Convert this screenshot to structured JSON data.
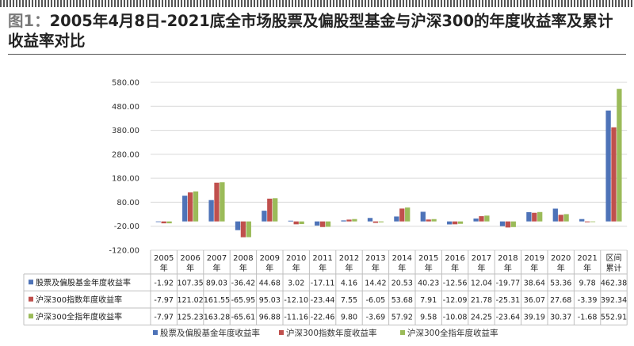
{
  "title": {
    "prefix": "图1：",
    "text": "2005年4月8日-2021底全市场股票及偏股型基金与沪深300的年度收益率及累计收益率对比"
  },
  "colors": {
    "series": [
      "#4e73b8",
      "#c0504d",
      "#9bbb59"
    ],
    "grid": "#d9d9d9",
    "axis": "#bfbfbf"
  },
  "chart_data": {
    "type": "bar",
    "title": "2005年4月8日-2021底全市场股票及偏股型基金与沪深300的年度收益率及累计收益率对比",
    "categories": [
      [
        "2005",
        "年"
      ],
      [
        "2006",
        "年"
      ],
      [
        "2007",
        "年"
      ],
      [
        "2008",
        "年"
      ],
      [
        "2009",
        "年"
      ],
      [
        "2010",
        "年"
      ],
      [
        "2011",
        "年"
      ],
      [
        "2012",
        "年"
      ],
      [
        "2013",
        "年"
      ],
      [
        "2014",
        "年"
      ],
      [
        "2015",
        "年"
      ],
      [
        "2016",
        "年"
      ],
      [
        "2017",
        "年"
      ],
      [
        "2018",
        "年"
      ],
      [
        "2019",
        "年"
      ],
      [
        "2020",
        "年"
      ],
      [
        "2021",
        "年"
      ],
      [
        "区间",
        "累计"
      ]
    ],
    "series": [
      {
        "name": "股票及偏股基金年度收益率",
        "values": [
          -1.92,
          107.35,
          89.03,
          -36.42,
          44.68,
          3.02,
          -17.11,
          4.16,
          14.42,
          20.53,
          40.23,
          -12.56,
          12.04,
          -19.77,
          38.64,
          53.36,
          9.78,
          462.38
        ],
        "labels": [
          "-1.92",
          "107.35",
          "89.03",
          "-36.42",
          "44.68",
          "3.02",
          "-17.11",
          "4.16",
          "14.42",
          "20.53",
          "40.23",
          "-12.56",
          "12.04",
          "-19.77",
          "38.64",
          "53.36",
          "9.78",
          "462.38"
        ]
      },
      {
        "name": "沪深300指数年度收益率",
        "values": [
          -7.97,
          121.02,
          161.55,
          -65.95,
          95.03,
          -12.1,
          -23.44,
          7.55,
          -6.05,
          53.68,
          7.91,
          -12.09,
          21.78,
          -25.31,
          36.07,
          27.68,
          -3.39,
          392.34
        ],
        "labels": [
          "-7.97",
          "121.02",
          "161.55",
          "-65.95",
          "95.03",
          "-12.10",
          "-23.44",
          "7.55",
          "-6.05",
          "53.68",
          "7.91",
          "-12.09",
          "21.78",
          "-25.31",
          "36.07",
          "27.68",
          "-3.39",
          "392.34"
        ]
      },
      {
        "name": "沪深300全指年度收益率",
        "values": [
          -7.97,
          125.23,
          163.28,
          -65.61,
          96.88,
          -11.16,
          -22.46,
          9.8,
          -3.69,
          57.92,
          9.58,
          -10.08,
          24.25,
          -23.64,
          39.19,
          30.37,
          -1.68,
          552.91
        ],
        "labels": [
          "-7.97",
          "125.23",
          "163.28",
          "-65.61",
          "96.88",
          "-11.16",
          "-22.46",
          "9.80",
          "-3.69",
          "57.92",
          "9.58",
          "-10.08",
          "24.25",
          "-23.64",
          "39.19",
          "30.37",
          "-1.68",
          "552.91"
        ]
      }
    ],
    "yticks": [
      "580.00",
      "480.00",
      "380.00",
      "280.00",
      "180.00",
      "80.00",
      "-20.00",
      "-120.00"
    ],
    "ylim": [
      -120,
      580
    ],
    "grid": true,
    "data_table": true,
    "legend_position": "bottom"
  }
}
